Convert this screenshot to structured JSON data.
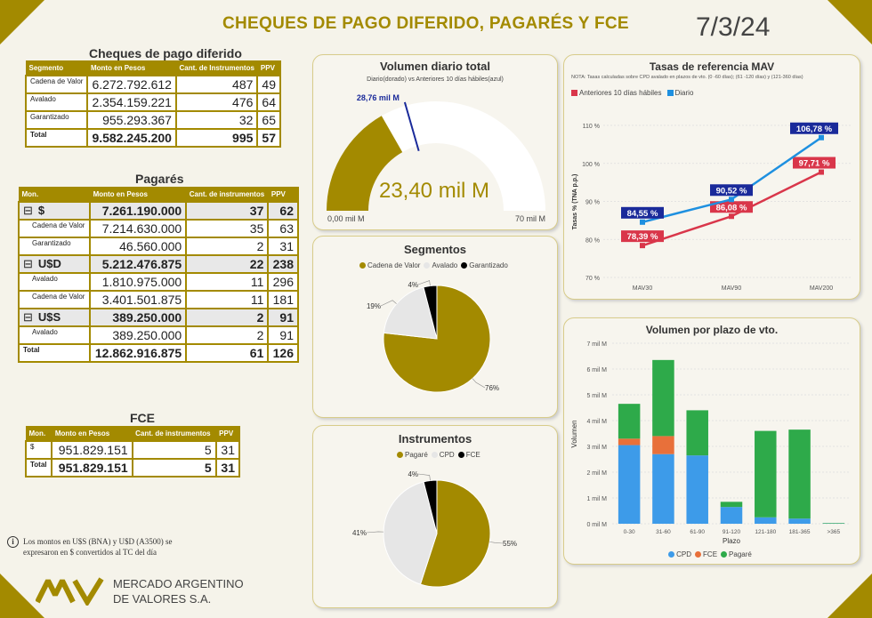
{
  "header": {
    "title": "CHEQUES DE PAGO DIFERIDO, PAGARÉS Y FCE",
    "date": "7/3/24"
  },
  "cheques": {
    "title": "Cheques de pago diferido",
    "headers": [
      "Segmento",
      "Monto en Pesos",
      "Cant. de Instrumentos",
      "PPV"
    ],
    "rows": [
      [
        "Cadena de Valor",
        "6.272.792.612",
        "487",
        "49"
      ],
      [
        "Avalado",
        "2.354.159.221",
        "476",
        "64"
      ],
      [
        "Garantizado",
        "955.293.367",
        "32",
        "65"
      ]
    ],
    "total": [
      "Total",
      "9.582.245.200",
      "995",
      "57"
    ]
  },
  "pagares": {
    "title": "Pagarés",
    "headers": [
      "Mon.",
      "Monto en Pesos",
      "Cant. de instrumentos",
      "PPV"
    ],
    "groups": [
      {
        "name": "$",
        "values": [
          "7.261.190.000",
          "37",
          "62"
        ],
        "rows": [
          [
            "Cadena de Valor",
            "7.214.630.000",
            "35",
            "63"
          ],
          [
            "Garantizado",
            "46.560.000",
            "2",
            "31"
          ]
        ]
      },
      {
        "name": "U$D",
        "values": [
          "5.212.476.875",
          "22",
          "238"
        ],
        "rows": [
          [
            "Avalado",
            "1.810.975.000",
            "11",
            "296"
          ],
          [
            "Cadena de Valor",
            "3.401.501.875",
            "11",
            "181"
          ]
        ]
      },
      {
        "name": "U$S",
        "values": [
          "389.250.000",
          "2",
          "91"
        ],
        "rows": [
          [
            "Avalado",
            "389.250.000",
            "2",
            "91"
          ]
        ]
      }
    ],
    "total": [
      "Total",
      "12.862.916.875",
      "61",
      "126"
    ]
  },
  "fce": {
    "title": "FCE",
    "headers": [
      "Mon.",
      "Monto en Pesos",
      "Cant. de instrumentos",
      "PPV"
    ],
    "rows": [
      [
        "$",
        "951.829.151",
        "5",
        "31"
      ]
    ],
    "total": [
      "Total",
      "951.829.151",
      "5",
      "31"
    ]
  },
  "volumen_diario": {
    "title": "Volumen diario total",
    "subtitle": "Diario(dorado) vs Anteriores 10 días hábiles(azul)",
    "value": "23,40 mil M",
    "min": "0,00 mil M",
    "max": "70 mil M",
    "target_label": "28,76 mil M",
    "gauge_value": 23.4,
    "gauge_target": 28.76,
    "gauge_max": 70
  },
  "segmentos": {
    "title": "Segmentos",
    "legend": [
      "Cadena de Valor",
      "Avalado",
      "Garantizado"
    ],
    "colors": [
      "#a38a00",
      "#e6e6e6",
      "#000000"
    ],
    "values": [
      76,
      19,
      4
    ],
    "labels": [
      "76%",
      "19%",
      "4%"
    ]
  },
  "instrumentos": {
    "title": "Instrumentos",
    "legend": [
      "Pagaré",
      "CPD",
      "FCE"
    ],
    "colors": [
      "#a38a00",
      "#e6e6e6",
      "#000000"
    ],
    "values": [
      55,
      41,
      4
    ],
    "labels": [
      "55%",
      "41%",
      "4%"
    ]
  },
  "tasas": {
    "title": "Tasas de referencia MAV",
    "note": "NOTA: Tasas calculadas sobre CPD avalado en plazos de vto. (0 -60 días); (61 -120 días) y (121-360 días)",
    "legend": [
      "Anteriores 10 días hábiles",
      "Diario"
    ],
    "colors": {
      "anteriores": "#d9364a",
      "diario": "#1e90e0",
      "label_diario": "#1a2a9a"
    },
    "ylabel": "Tasas % (TNA p.p.)",
    "yticks": [
      "110 %",
      "100 %",
      "90 %",
      "80 %",
      "70 %"
    ],
    "categories": [
      "MAV30",
      "MAV90",
      "MAV200"
    ],
    "diario_labels": [
      "84,55 %",
      "90,52 %",
      "106,78 %"
    ],
    "anteriores_labels": [
      "78,39 %",
      "86,08 %",
      "97,71 %"
    ]
  },
  "plazo": {
    "title": "Volumen por plazo de vto.",
    "ylabel": "Volumen",
    "xlabel": "Plazo",
    "yticks": [
      "7 mil M",
      "6 mil M",
      "5 mil M",
      "4 mil M",
      "3 mil M",
      "2 mil M",
      "1 mil M",
      "0 mil M"
    ],
    "legend": [
      "CPD",
      "FCE",
      "Pagaré"
    ],
    "colors": {
      "cpd": "#3d9be9",
      "fce": "#e8703a",
      "pagare": "#2eaa4a"
    }
  },
  "chart_data": [
    {
      "type": "line",
      "title": "Tasas de referencia MAV",
      "ylabel": "Tasas % (TNA p.p.)",
      "categories": [
        "MAV30",
        "MAV90",
        "MAV200"
      ],
      "ylim": [
        70,
        110
      ],
      "series": [
        {
          "name": "Anteriores 10 días hábiles",
          "values": [
            78.39,
            86.08,
            97.71
          ]
        },
        {
          "name": "Diario",
          "values": [
            84.55,
            90.52,
            106.78
          ]
        }
      ]
    },
    {
      "type": "bar",
      "title": "Volumen por plazo de vto.",
      "xlabel": "Plazo",
      "ylabel": "Volumen",
      "categories": [
        "0-30",
        "31-60",
        "61-90",
        "91-120",
        "121-180",
        "181-365",
        ">365"
      ],
      "ylim": [
        0,
        7
      ],
      "series": [
        {
          "name": "CPD",
          "values": [
            3.05,
            2.7,
            2.65,
            0.65,
            0.25,
            0.2,
            0.01
          ]
        },
        {
          "name": "FCE",
          "values": [
            0.25,
            0.7,
            0,
            0,
            0,
            0,
            0
          ]
        },
        {
          "name": "Pagaré",
          "values": [
            1.35,
            2.95,
            1.75,
            0.2,
            3.35,
            3.45,
            0.02
          ]
        }
      ]
    },
    {
      "type": "pie",
      "title": "Segmentos",
      "categories": [
        "Cadena de Valor",
        "Avalado",
        "Garantizado"
      ],
      "values": [
        76,
        19,
        4
      ]
    },
    {
      "type": "pie",
      "title": "Instrumentos",
      "categories": [
        "Pagaré",
        "CPD",
        "FCE"
      ],
      "values": [
        55,
        41,
        4
      ]
    }
  ],
  "footnote": "Los montos en U$S (BNA) y U$D (A3500) se expresaron en $ convertidos al TC del día",
  "logo": {
    "line1": "MERCADO ARGENTINO",
    "line2": "DE VALORES S.A."
  }
}
